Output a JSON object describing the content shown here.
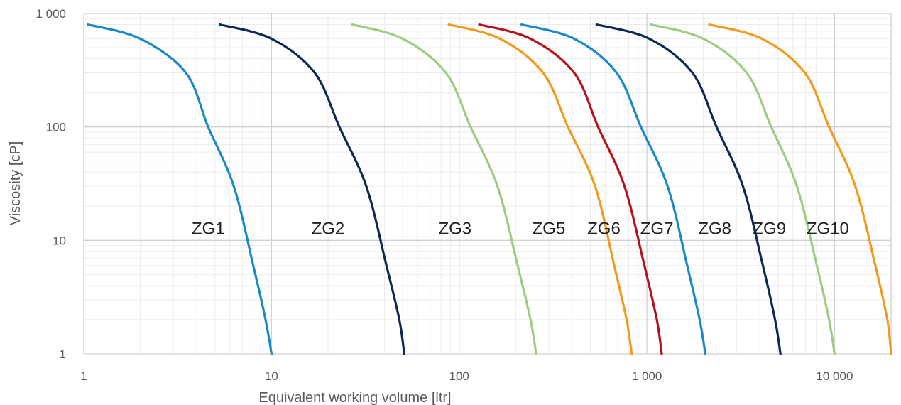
{
  "chart_data": {
    "type": "line",
    "title": "",
    "xlabel": "Equivalent working volume [ltr]",
    "ylabel": "Viscosity [cP]",
    "xscale": "log",
    "yscale": "log",
    "xlim": [
      1,
      20000
    ],
    "ylim": [
      1,
      1000
    ],
    "grid": true,
    "legend": "none",
    "x_ticks": [
      {
        "value": 1,
        "label": "1"
      },
      {
        "value": 10,
        "label": "10"
      },
      {
        "value": 100,
        "label": "100"
      },
      {
        "value": 1000,
        "label": "1 000"
      },
      {
        "value": 10000,
        "label": "10 000"
      }
    ],
    "y_ticks": [
      {
        "value": 1,
        "label": "1"
      },
      {
        "value": 10,
        "label": "10"
      },
      {
        "value": 100,
        "label": "100"
      },
      {
        "value": 1000,
        "label": "1 000"
      }
    ],
    "series": [
      {
        "name": "ZG1",
        "color": "#1a8ac6",
        "x": [
          1.05,
          2.0,
          3.5,
          4.6,
          6.3,
          8.0,
          9.3,
          10.0
        ],
        "y": [
          800,
          600,
          300,
          100,
          30,
          6,
          2,
          1
        ],
        "label_at": [
          4.6,
          11
        ]
      },
      {
        "name": "ZG2",
        "color": "#0d2b52",
        "x": [
          5.3,
          10.0,
          17.0,
          23.0,
          32.0,
          41.0,
          48.0,
          51.0
        ],
        "y": [
          800,
          600,
          300,
          100,
          30,
          6,
          2,
          1
        ],
        "label_at": [
          20,
          11
        ]
      },
      {
        "name": "ZG3",
        "color": "#9dcc82",
        "x": [
          27.0,
          50.0,
          85.0,
          115.0,
          160.0,
          205.0,
          240.0,
          257.0
        ],
        "y": [
          800,
          600,
          300,
          100,
          30,
          6,
          2,
          1
        ],
        "label_at": [
          95,
          11
        ]
      },
      {
        "name": "ZG5",
        "color": "#f29a1e",
        "x": [
          88.0,
          165.0,
          280.0,
          380.0,
          530.0,
          670.0,
          780.0,
          830.0
        ],
        "y": [
          800,
          600,
          300,
          100,
          30,
          6,
          2,
          1
        ],
        "label_at": [
          300,
          11
        ]
      },
      {
        "name": "ZG6",
        "color": "#b5121b",
        "x": [
          128.0,
          240.0,
          410.0,
          550.0,
          760.0,
          970.0,
          1130.0,
          1200.0
        ],
        "y": [
          800,
          600,
          300,
          100,
          30,
          6,
          2,
          1
        ],
        "label_at": [
          590,
          11
        ]
      },
      {
        "name": "ZG7",
        "color": "#1a8ac6",
        "x": [
          215.0,
          410.0,
          690.0,
          930.0,
          1290.0,
          1640.0,
          1910.0,
          2050.0
        ],
        "y": [
          800,
          600,
          300,
          100,
          30,
          6,
          2,
          1
        ],
        "label_at": [
          1130,
          11
        ]
      },
      {
        "name": "ZG8",
        "color": "#0d2b52",
        "x": [
          540.0,
          1030.0,
          1750.0,
          2350.0,
          3250.0,
          4150.0,
          4820.0,
          5150.0
        ],
        "y": [
          800,
          600,
          300,
          100,
          30,
          6,
          2,
          1
        ],
        "label_at": [
          2300,
          11
        ]
      },
      {
        "name": "ZG9",
        "color": "#9dcc82",
        "x": [
          1050.0,
          2000.0,
          3400.0,
          4600.0,
          6300.0,
          8050.0,
          9350.0,
          10000.0
        ],
        "y": [
          800,
          600,
          300,
          100,
          30,
          6,
          2,
          1
        ],
        "label_at": [
          4500,
          11
        ]
      },
      {
        "name": "ZG10",
        "color": "#f29a1e",
        "x": [
          2150.0,
          4100.0,
          6950.0,
          9350.0,
          12900.0,
          16500.0,
          19100.0,
          20000.0
        ],
        "y": [
          800,
          600,
          300,
          100,
          30,
          6,
          2,
          1
        ],
        "label_at": [
          9200,
          11
        ]
      }
    ]
  }
}
